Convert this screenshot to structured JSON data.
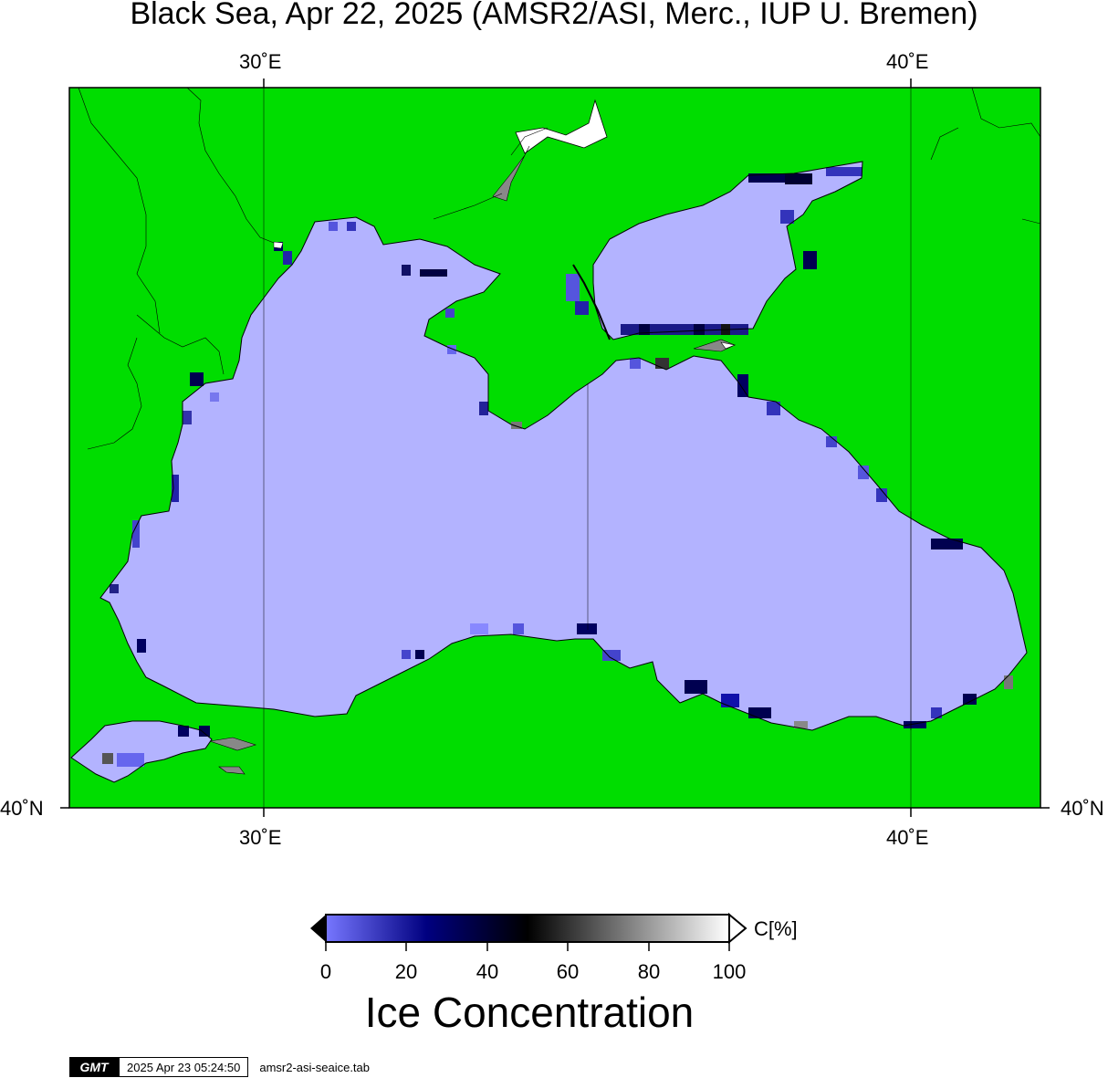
{
  "title": "Black Sea, Apr 22, 2025 (AMSR2/ASI, Merc., IUP U. Bremen)",
  "axes": {
    "lon_ticks": [
      "30˚E",
      "40˚E"
    ],
    "lat_ticks": [
      "40˚N"
    ]
  },
  "colorbar": {
    "title": "Ice Concentration",
    "unit": "C[%]",
    "labels": [
      "0",
      "20",
      "40",
      "60",
      "80",
      "100"
    ],
    "range": [
      0,
      100
    ]
  },
  "colors": {
    "land": "#00dd00",
    "open_water": "#b3b3ff",
    "graticule": "#000000"
  },
  "footer": {
    "logo": "GMT",
    "timestamp": "2025 Apr 23 05:24:50",
    "filename": "amsr2-asi-seaice.tab"
  }
}
